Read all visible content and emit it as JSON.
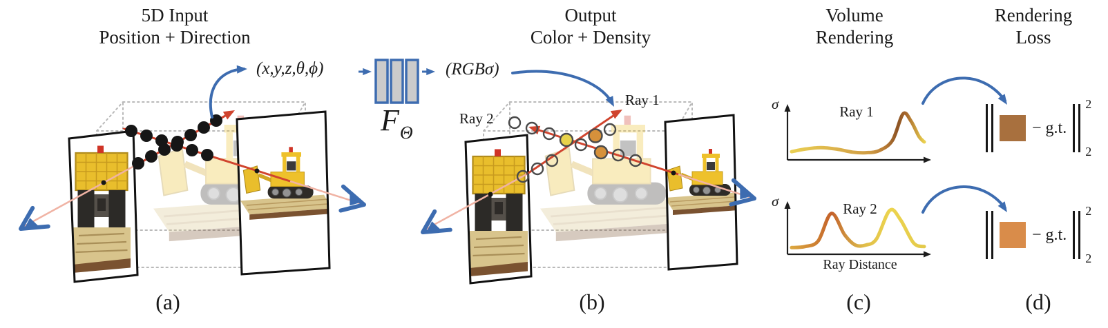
{
  "colors": {
    "blue": "#3d6cb0",
    "red": "#d0442e",
    "red_pale": "#f0b3a4",
    "ink": "#1c1c1c",
    "cube_gray": "#b9b9b9",
    "mlp_fill": "#cbcbcb",
    "circle_stroke": "#4a4a4a",
    "dot_black": "#161616",
    "sample_yellow": "#e8d24a",
    "sample_orange": "#d6913b",
    "loss1_brown": "#a8703e",
    "loss2_orange": "#d98c4a"
  },
  "panels": {
    "a": {
      "label": "(a)",
      "title_line1": "5D Input",
      "title_line2": "Position + Direction",
      "input_tuple": "(x,y,z,θ,ϕ)"
    },
    "b": {
      "label": "(b)",
      "title_line1": "Output",
      "title_line2": "Color + Density",
      "output_tuple": "(RGBσ)",
      "ray1_label": "Ray 1",
      "ray2_label": "Ray 2"
    },
    "c": {
      "label": "(c)",
      "title_line1": "Volume",
      "title_line2": "Rendering",
      "plots": [
        {
          "title": "Ray 1",
          "ylabel": "σ"
        },
        {
          "title": "Ray 2",
          "ylabel": "σ",
          "xlabel": "Ray Distance"
        }
      ]
    },
    "d": {
      "label": "(d)",
      "title_line1": "Rendering",
      "title_line2": "Loss",
      "terms": [
        {
          "minus_gt": "− g.t.",
          "sup": "2",
          "sub": "2",
          "color": "#a8703e"
        },
        {
          "minus_gt": "− g.t.",
          "sup": "2",
          "sub": "2",
          "color": "#d98c4a"
        }
      ]
    }
  },
  "mlp": {
    "name": "F",
    "subscript": "Θ"
  },
  "chart_data": [
    {
      "type": "line",
      "title": "Ray 1",
      "xlabel": "Ray Distance",
      "ylabel": "σ",
      "x_range": [
        0,
        1
      ],
      "y_range": [
        0,
        1
      ],
      "grid": false,
      "points": [
        [
          0,
          0.08
        ],
        [
          0.1,
          0.13
        ],
        [
          0.22,
          0.16
        ],
        [
          0.34,
          0.13
        ],
        [
          0.46,
          0.07
        ],
        [
          0.56,
          0.06
        ],
        [
          0.66,
          0.1
        ],
        [
          0.76,
          0.3
        ],
        [
          0.84,
          0.82
        ],
        [
          0.9,
          0.68
        ],
        [
          0.96,
          0.38
        ],
        [
          1,
          0.27
        ]
      ],
      "gradient": [
        [
          0,
          "#e9cf52"
        ],
        [
          0.35,
          "#dcb14b"
        ],
        [
          0.58,
          "#cf9d45"
        ],
        [
          0.7,
          "#b97c35"
        ],
        [
          0.8,
          "#8d5424"
        ],
        [
          0.87,
          "#a96a2d"
        ],
        [
          1,
          "#ead04e"
        ]
      ]
    },
    {
      "type": "line",
      "title": "Ray 2",
      "xlabel": "Ray Distance",
      "ylabel": "σ",
      "x_range": [
        0,
        1
      ],
      "y_range": [
        0,
        1
      ],
      "grid": false,
      "points": [
        [
          0,
          0.05
        ],
        [
          0.1,
          0.07
        ],
        [
          0.2,
          0.18
        ],
        [
          0.3,
          0.72
        ],
        [
          0.4,
          0.3
        ],
        [
          0.48,
          0.1
        ],
        [
          0.56,
          0.1
        ],
        [
          0.64,
          0.22
        ],
        [
          0.74,
          0.78
        ],
        [
          0.82,
          0.6
        ],
        [
          0.92,
          0.14
        ],
        [
          1,
          0.07
        ]
      ],
      "gradient": [
        [
          0,
          "#dca73f"
        ],
        [
          0.2,
          "#cc7c31"
        ],
        [
          0.3,
          "#c4602a"
        ],
        [
          0.42,
          "#cf9440"
        ],
        [
          0.55,
          "#e0bd49"
        ],
        [
          0.74,
          "#ecd44e"
        ],
        [
          0.85,
          "#e9d04c"
        ],
        [
          1,
          "#e3c94a"
        ]
      ]
    }
  ]
}
